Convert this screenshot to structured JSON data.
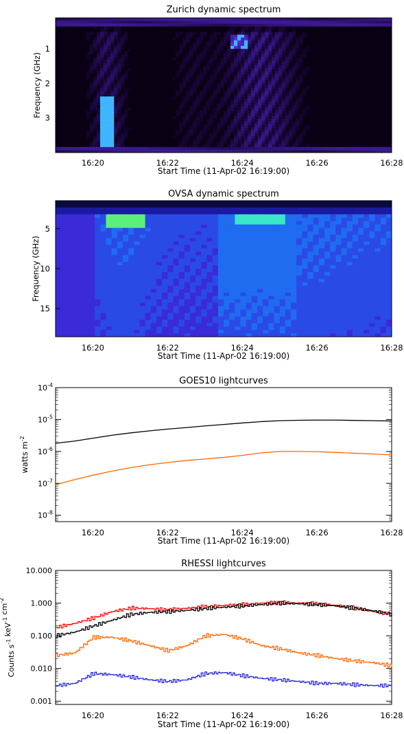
{
  "chart_data": [
    {
      "type": "heatmap",
      "title": "Zurich dynamic spectrum",
      "xlabel": "Start Time (11-Apr-02 16:19:00)",
      "ylabel": "Frequency (GHz)",
      "x_ticks": [
        "16:20",
        "16:22",
        "16:24",
        "16:26",
        "16:28"
      ],
      "x_tick_values": [
        1,
        3,
        5,
        7,
        9
      ],
      "xlim": [
        0,
        9
      ],
      "y_ticks": [
        "1",
        "2",
        "3"
      ],
      "y_tick_values": [
        1,
        2,
        3
      ],
      "ylim": [
        4.0,
        0.1
      ],
      "colors": {
        "background": "#0a0014",
        "emission": "#3a1aa8",
        "burst": "#3fb6ff"
      }
    },
    {
      "type": "heatmap",
      "title": "OVSA dynamic spectrum",
      "xlabel": "Start Time (11-Apr-02 16:19:00)",
      "ylabel": "Frequency (GHz)",
      "x_ticks": [
        "16:20",
        "16:22",
        "16:24",
        "16:26",
        "16:28"
      ],
      "x_tick_values": [
        1,
        3,
        5,
        7,
        9
      ],
      "xlim": [
        0,
        9
      ],
      "y_ticks": [
        "5",
        "10",
        "15"
      ],
      "y_tick_values": [
        5,
        10,
        15
      ],
      "ylim": [
        1.5,
        18.5
      ],
      "colors": {
        "low": "#3a2ad8",
        "mid": "#1f6cf0",
        "high": "#38e6c8",
        "peak": "#5cf07a"
      }
    },
    {
      "type": "line",
      "title": "GOES10 lightcurves",
      "xlabel": "Start Time (11-Apr-02 16:19:00)",
      "ylabel": "watts m",
      "ylabel_sup": "-2",
      "y_scale": "log",
      "x_ticks": [
        "16:20",
        "16:22",
        "16:24",
        "16:26",
        "16:28"
      ],
      "x_tick_values": [
        1,
        3,
        5,
        7,
        9
      ],
      "xlim": [
        0,
        9
      ],
      "y_ticks": [
        {
          "base": "10",
          "exp": "-8",
          "value": -8
        },
        {
          "base": "10",
          "exp": "-7",
          "value": -7
        },
        {
          "base": "10",
          "exp": "-6",
          "value": -6
        },
        {
          "base": "10",
          "exp": "-5",
          "value": -5
        },
        {
          "base": "10",
          "exp": "-4",
          "value": -4
        }
      ],
      "ylim_log10": [
        -8.2,
        -4
      ],
      "series": [
        {
          "color": "#000000",
          "x": [
            0,
            0.5,
            1,
            1.5,
            2,
            2.5,
            3,
            3.5,
            4,
            4.5,
            5,
            5.5,
            6,
            6.5,
            7,
            7.5,
            8,
            8.5,
            9
          ],
          "y": [
            1.8e-06,
            2.1e-06,
            2.6e-06,
            3.2e-06,
            3.8e-06,
            4.4e-06,
            5e-06,
            5.6e-06,
            6.3e-06,
            7e-06,
            7.8e-06,
            8.6e-06,
            9.2e-06,
            9.5e-06,
            9.6e-06,
            9.6e-06,
            9.4e-06,
            9.2e-06,
            9e-06
          ]
        },
        {
          "color": "#ff6600",
          "x": [
            0,
            0.5,
            1,
            1.5,
            2,
            2.5,
            3,
            3.5,
            4,
            4.5,
            5,
            5.5,
            6,
            6.5,
            7,
            7.5,
            8,
            8.5,
            9
          ],
          "y": [
            9e-08,
            1.3e-07,
            1.8e-07,
            2.4e-07,
            3.1e-07,
            3.8e-07,
            4.5e-07,
            5.2e-07,
            5.8e-07,
            6.5e-07,
            7.5e-07,
            9e-07,
            1e-06,
            1e-06,
            9.8e-07,
            9.3e-07,
            8.8e-07,
            8.3e-07,
            7.8e-07
          ]
        }
      ]
    },
    {
      "type": "line",
      "title": "RHESSI lightcurves",
      "xlabel": "Start Time (11-Apr-02 16:19:00)",
      "ylabel": "Counts s",
      "ylabel_parts": [
        {
          "t": "Counts s",
          "sup": "-1"
        },
        {
          "t": " keV",
          "sup": "-1"
        },
        {
          "t": " cm",
          "sup": "-2"
        }
      ],
      "y_scale": "log",
      "x_ticks": [
        "16:20",
        "16:22",
        "16:24",
        "16:26",
        "16:28"
      ],
      "x_tick_values": [
        1,
        3,
        5,
        7,
        9
      ],
      "xlim": [
        0,
        9
      ],
      "y_ticks": [
        "0.001",
        "0.010",
        "0.100",
        "1.000",
        "10.000"
      ],
      "y_tick_values": [
        -3,
        -2,
        -1,
        0,
        1
      ],
      "ylim_log10": [
        -3.1,
        1
      ],
      "series": [
        {
          "color": "#ff0000",
          "x": [
            0,
            0.5,
            1,
            1.5,
            2,
            2.5,
            3,
            3.5,
            4,
            4.5,
            5,
            5.5,
            6,
            6.5,
            7,
            7.5,
            8,
            8.5,
            9
          ],
          "y": [
            0.18,
            0.24,
            0.35,
            0.55,
            0.7,
            0.68,
            0.62,
            0.7,
            0.78,
            0.85,
            0.9,
            1.0,
            1.05,
            1.0,
            0.95,
            0.85,
            0.7,
            0.55,
            0.45
          ]
        },
        {
          "color": "#000000",
          "x": [
            0,
            0.5,
            1,
            1.5,
            2,
            2.5,
            3,
            3.5,
            4,
            4.5,
            5,
            5.5,
            6,
            6.5,
            7,
            7.5,
            8,
            8.5,
            9
          ],
          "y": [
            0.1,
            0.13,
            0.2,
            0.3,
            0.45,
            0.52,
            0.55,
            0.6,
            0.68,
            0.75,
            0.82,
            0.9,
            1.0,
            0.95,
            0.9,
            0.82,
            0.7,
            0.58,
            0.45
          ]
        },
        {
          "color": "#ff6600",
          "x": [
            0,
            0.5,
            1,
            1.5,
            2,
            2.5,
            3,
            3.5,
            4,
            4.5,
            5,
            5.5,
            6,
            6.5,
            7,
            7.5,
            8,
            8.5,
            9
          ],
          "y": [
            0.025,
            0.03,
            0.09,
            0.09,
            0.07,
            0.05,
            0.035,
            0.05,
            0.1,
            0.11,
            0.08,
            0.05,
            0.04,
            0.03,
            0.025,
            0.02,
            0.017,
            0.015,
            0.012
          ]
        },
        {
          "color": "#2222dd",
          "x": [
            0,
            0.5,
            1,
            1.5,
            2,
            2.5,
            3,
            3.5,
            4,
            4.5,
            5,
            5.5,
            6,
            6.5,
            7,
            7.5,
            8,
            8.5,
            9
          ],
          "y": [
            0.003,
            0.0035,
            0.007,
            0.0065,
            0.0055,
            0.0045,
            0.004,
            0.0045,
            0.007,
            0.0075,
            0.006,
            0.005,
            0.0045,
            0.004,
            0.0035,
            0.0035,
            0.0032,
            0.003,
            0.003
          ]
        }
      ]
    }
  ]
}
